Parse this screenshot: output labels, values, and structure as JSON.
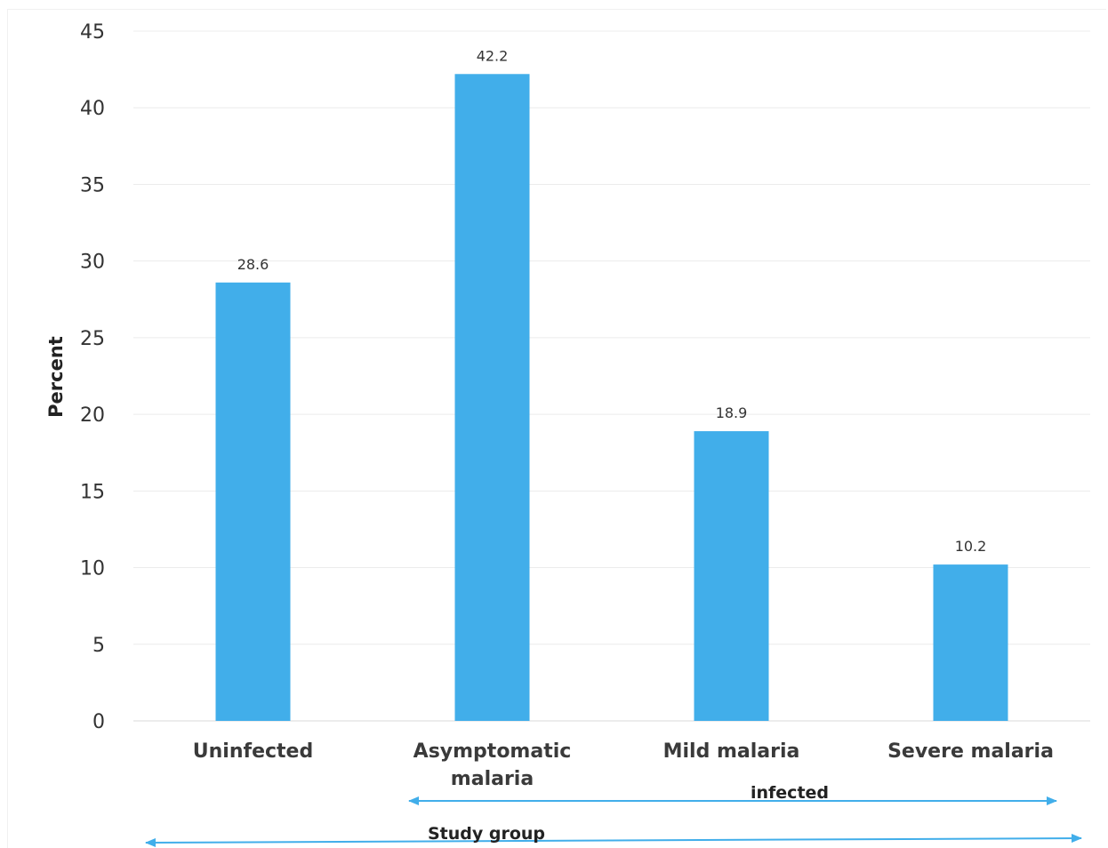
{
  "chart_data": {
    "type": "bar",
    "categories": [
      "Uninfected",
      "Asymptomatic malaria",
      "Mild malaria",
      "Severe malaria"
    ],
    "category_lines": [
      [
        "Uninfected"
      ],
      [
        "Asymptomatic",
        "malaria"
      ],
      [
        "Mild malaria"
      ],
      [
        "Severe malaria"
      ]
    ],
    "values": [
      28.6,
      42.2,
      18.9,
      10.2
    ],
    "data_labels": [
      "28.6",
      "42.2",
      "18.9",
      "10.2"
    ],
    "ylabel": "Percent",
    "xlabel": "Study group",
    "ylim": [
      0,
      45
    ],
    "yticks": [
      0,
      5,
      10,
      15,
      20,
      25,
      30,
      35,
      40,
      45
    ],
    "grid": true,
    "legend": "none",
    "bar_color": "#41aeea",
    "arrow_color": "#41aeea",
    "infected_bracket": {
      "label": "infected",
      "from_category": 1,
      "to_category": 3
    }
  }
}
